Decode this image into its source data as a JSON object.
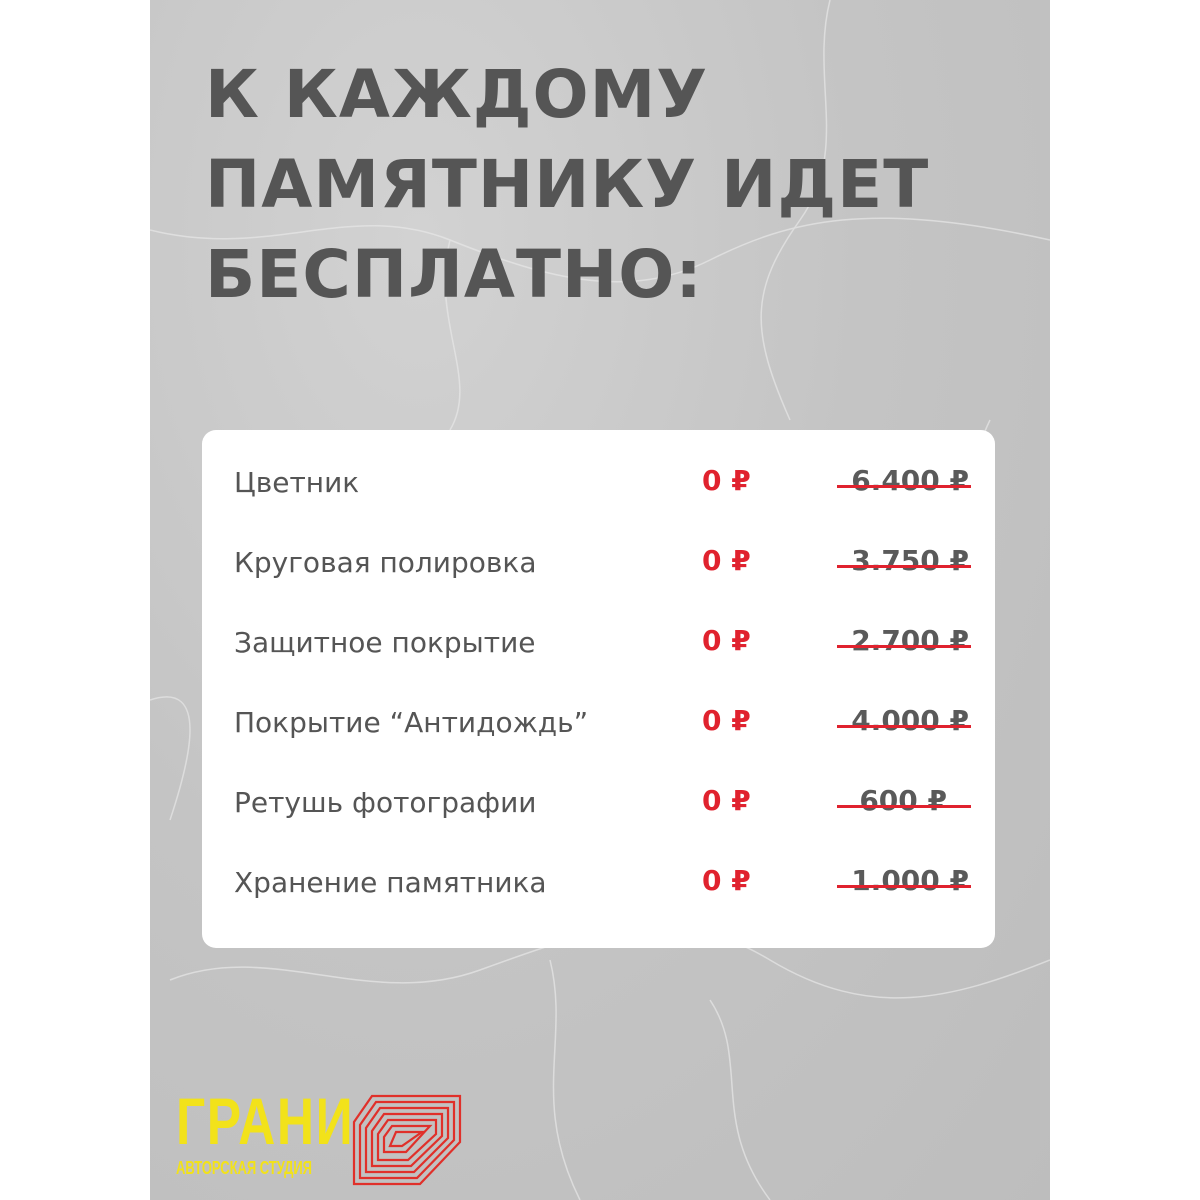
{
  "title_lines": [
    "К КАЖДОМУ",
    "ПАМЯТНИКУ ИДЕТ",
    "БЕСПЛАТНО:"
  ],
  "items": [
    {
      "label": "Цветник",
      "price": "0 ₽",
      "old_price": "6.400 ₽"
    },
    {
      "label": "Круговая полировка",
      "price": "0 ₽",
      "old_price": "3.750 ₽"
    },
    {
      "label": "Защитное покрытие",
      "price": "0 ₽",
      "old_price": "2.700 ₽"
    },
    {
      "label": "Покрытие “Антидождь”",
      "price": "0 ₽",
      "old_price": "4.000 ₽"
    },
    {
      "label": "Ретушь фотографии",
      "price": "0 ₽",
      "old_price": "600 ₽"
    },
    {
      "label": "Хранение памятника",
      "price": "0 ₽",
      "old_price": "1.000 ₽"
    }
  ],
  "logo": {
    "name": "ГРАНИ",
    "tagline": "АВТОРСКАЯ СТУДИЯ",
    "icon": "concentric-polygon-logo-icon"
  },
  "colors": {
    "accent_red": "#e0222e",
    "logo_yellow": "#f2e21a",
    "text_gray": "#555555"
  }
}
